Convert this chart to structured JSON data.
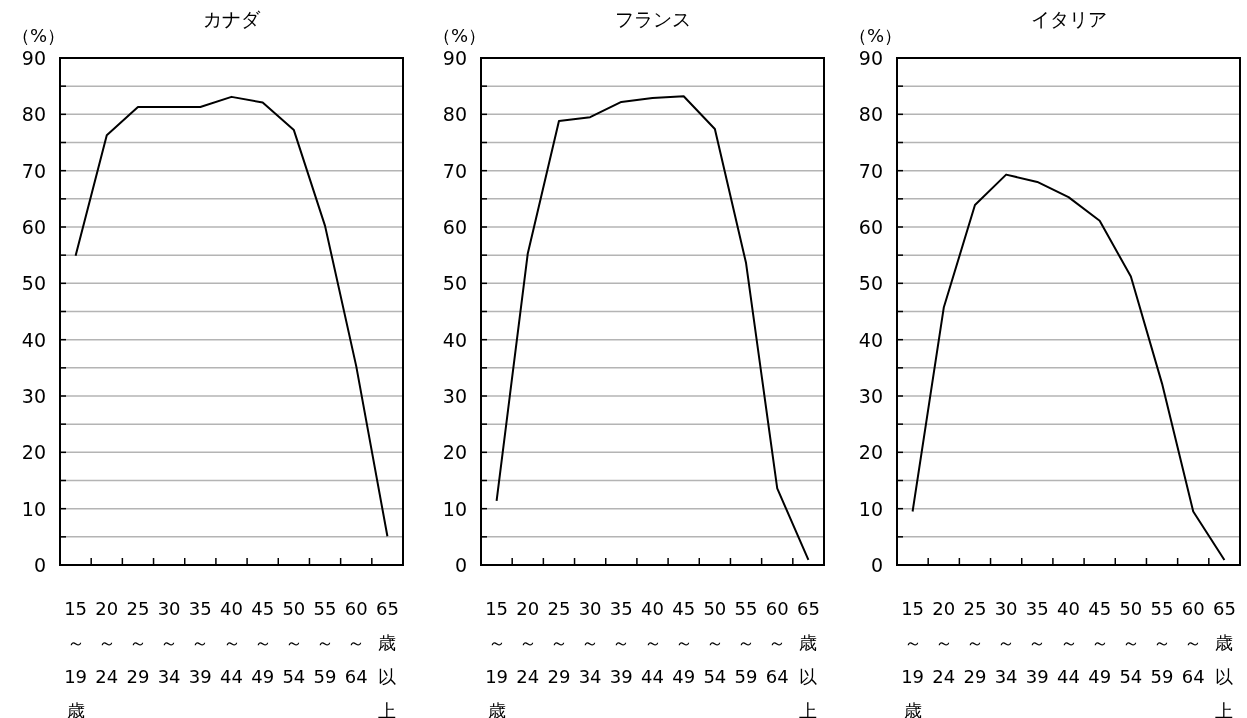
{
  "chart_data": [
    {
      "type": "line",
      "title": "カナダ",
      "ylabel": "（%）",
      "categories": [
        "15～19歳",
        "20～24",
        "25～29",
        "30～34",
        "35～39",
        "40～44",
        "45～49",
        "50～54",
        "55～59",
        "60～64",
        "65歳以上"
      ],
      "series": [
        {
          "color": "#000000",
          "values": [
            54.9,
            76.3,
            81.3,
            81.3,
            81.3,
            83.1,
            82.1,
            77.2,
            60.2,
            35.3,
            5.1
          ]
        }
      ],
      "ylim": [
        0,
        90
      ],
      "yticks": [
        0,
        {
          "value": 5,
          "label": null
        },
        10,
        {
          "value": 15,
          "label": null
        },
        20,
        {
          "value": 25,
          "label": null
        },
        30,
        {
          "value": 35,
          "label": null
        },
        40,
        {
          "value": 45,
          "label": null
        },
        50,
        {
          "value": 55,
          "label": null
        },
        60,
        {
          "value": 65,
          "label": null
        },
        70,
        {
          "value": 75,
          "label": null
        },
        80,
        {
          "value": 85,
          "label": null
        },
        90
      ],
      "grid": "y"
    },
    {
      "type": "line",
      "title": "フランス",
      "ylabel": "（%）",
      "categories": [
        "15～19歳",
        "20～24",
        "25～29",
        "30～34",
        "35～39",
        "40～44",
        "45～49",
        "50～54",
        "55～59",
        "60～64",
        "65歳以上"
      ],
      "series": [
        {
          "color": "#000000",
          "values": [
            11.4,
            55.3,
            78.8,
            79.5,
            82.2,
            82.9,
            83.2,
            77.4,
            53.6,
            13.6,
            0.9
          ]
        }
      ],
      "ylim": [
        0,
        90
      ],
      "yticks": [
        0,
        {
          "value": 5,
          "label": null
        },
        10,
        {
          "value": 15,
          "label": null
        },
        20,
        {
          "value": 25,
          "label": null
        },
        30,
        {
          "value": 35,
          "label": null
        },
        40,
        {
          "value": 45,
          "label": null
        },
        50,
        {
          "value": 55,
          "label": null
        },
        60,
        {
          "value": 65,
          "label": null
        },
        70,
        {
          "value": 75,
          "label": null
        },
        80,
        {
          "value": 85,
          "label": null
        },
        90
      ],
      "grid": "y"
    },
    {
      "type": "line",
      "title": "イタリア",
      "ylabel": "（%）",
      "categories": [
        "15～19歳",
        "20～24",
        "25～29",
        "30～34",
        "35～39",
        "40～44",
        "45～49",
        "50～54",
        "55～59",
        "60～64",
        "65歳以上"
      ],
      "series": [
        {
          "color": "#000000",
          "values": [
            9.5,
            45.7,
            63.9,
            69.3,
            68.0,
            65.3,
            61.1,
            51.2,
            32.2,
            9.5,
            0.9
          ]
        }
      ],
      "ylim": [
        0,
        90
      ],
      "yticks": [
        0,
        {
          "value": 5,
          "label": null
        },
        10,
        {
          "value": 15,
          "label": null
        },
        20,
        {
          "value": 25,
          "label": null
        },
        30,
        {
          "value": 35,
          "label": null
        },
        40,
        {
          "value": 45,
          "label": null
        },
        50,
        {
          "value": 55,
          "label": null
        },
        60,
        {
          "value": 65,
          "label": null
        },
        70,
        {
          "value": 75,
          "label": null
        },
        80,
        {
          "value": 85,
          "label": null
        },
        90
      ],
      "grid": "y"
    }
  ]
}
